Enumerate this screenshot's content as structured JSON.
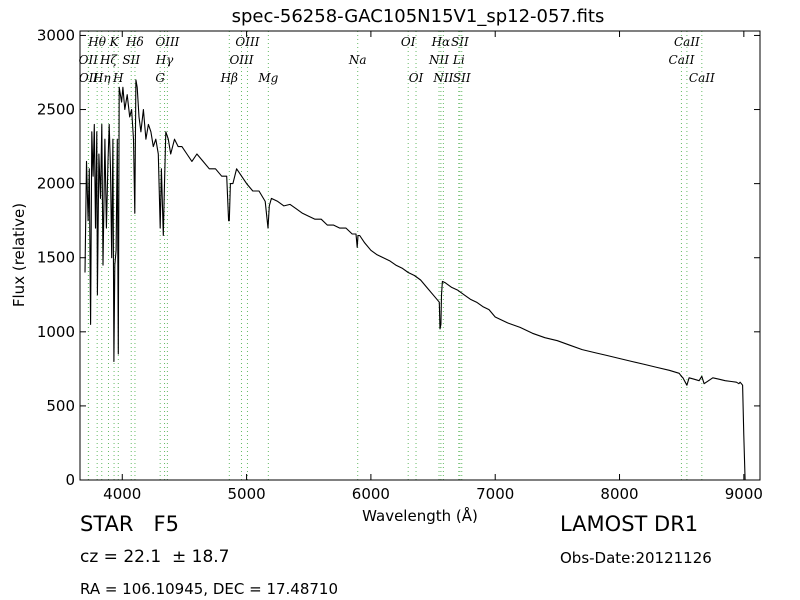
{
  "chart_data": {
    "type": "line",
    "title": "spec-56258-GAC105N15V1_sp12-057.fits",
    "xlabel": "Wavelength (Å)",
    "ylabel": "Flux (relative)",
    "xlim": [
      3660,
      9130
    ],
    "ylim": [
      0,
      3030
    ],
    "x_ticks": [
      4000,
      5000,
      6000,
      7000,
      8000,
      9000
    ],
    "x_tick_labels": [
      "4000",
      "5000",
      "6000",
      "7000",
      "8000",
      "9000"
    ],
    "y_ticks": [
      0,
      500,
      1000,
      1500,
      2000,
      2500,
      3000
    ],
    "y_tick_labels": [
      "0",
      "500",
      "1000",
      "1500",
      "2000",
      "2500",
      "3000"
    ],
    "grid": false,
    "line_color": "#000000",
    "spectral_line_color": "#66bb66",
    "series": [
      {
        "values_x": [
          3700,
          3712,
          3725,
          3735,
          3745,
          3755,
          3765,
          3775,
          3785,
          3795,
          3800,
          3812,
          3825,
          3835,
          3845,
          3860,
          3872,
          3885,
          3895,
          3905,
          3915,
          3925,
          3933,
          3940,
          3950,
          3960,
          3968,
          3975,
          3985,
          3995,
          4005,
          4020,
          4040,
          4060,
          4075,
          4090,
          4101,
          4110,
          4120,
          4135,
          4150,
          4170,
          4190,
          4210,
          4230,
          4250,
          4270,
          4290,
          4305,
          4315,
          4330,
          4340,
          4350,
          4370,
          4390,
          4420,
          4450,
          4480,
          4520,
          4560,
          4600,
          4650,
          4700,
          4750,
          4800,
          4840,
          4855,
          4861,
          4870,
          4890,
          4920,
          4960,
          5000,
          5050,
          5100,
          5150,
          5172,
          5183,
          5200,
          5250,
          5300,
          5350,
          5400,
          5450,
          5500,
          5550,
          5600,
          5650,
          5700,
          5750,
          5800,
          5850,
          5880,
          5890,
          5896,
          5910,
          5950,
          6000,
          6050,
          6100,
          6150,
          6200,
          6250,
          6300,
          6350,
          6400,
          6450,
          6500,
          6530,
          6550,
          6556,
          6563,
          6568,
          6575,
          6600,
          6650,
          6700,
          6750,
          6800,
          6850,
          6900,
          6950,
          7000,
          7100,
          7200,
          7300,
          7400,
          7500,
          7600,
          7700,
          7800,
          7900,
          8000,
          8100,
          8200,
          8300,
          8400,
          8480,
          8498,
          8510,
          8542,
          8560,
          8600,
          8640,
          8662,
          8680,
          8750,
          8800,
          8850,
          8900,
          8940,
          8960,
          8970,
          8980,
          8990,
          9000,
          9010
        ],
        "values_y": [
          1400,
          2150,
          1750,
          2100,
          1050,
          2350,
          2050,
          2400,
          1700,
          2350,
          1250,
          2200,
          1900,
          2400,
          1450,
          2300,
          1700,
          2150,
          2400,
          2100,
          1500,
          2300,
          800,
          1450,
          1550,
          2300,
          850,
          2650,
          2600,
          2550,
          2650,
          2500,
          2600,
          2450,
          2500,
          2300,
          1800,
          2700,
          2650,
          2450,
          2350,
          2500,
          2300,
          2400,
          2350,
          2250,
          2300,
          2200,
          1700,
          2100,
          1650,
          2000,
          2350,
          2300,
          2200,
          2300,
          2250,
          2250,
          2200,
          2150,
          2200,
          2150,
          2100,
          2100,
          2050,
          2050,
          1750,
          1750,
          2000,
          2000,
          2100,
          2050,
          2000,
          1950,
          1950,
          1880,
          1700,
          1850,
          1900,
          1880,
          1850,
          1860,
          1830,
          1800,
          1780,
          1760,
          1760,
          1720,
          1720,
          1700,
          1700,
          1660,
          1660,
          1570,
          1650,
          1650,
          1600,
          1550,
          1520,
          1500,
          1480,
          1450,
          1430,
          1400,
          1380,
          1350,
          1300,
          1250,
          1220,
          1200,
          1020,
          1050,
          1250,
          1340,
          1330,
          1300,
          1280,
          1250,
          1220,
          1200,
          1170,
          1150,
          1100,
          1060,
          1030,
          990,
          960,
          940,
          910,
          880,
          860,
          840,
          820,
          800,
          780,
          760,
          740,
          720,
          700,
          690,
          640,
          690,
          680,
          670,
          700,
          650,
          690,
          680,
          670,
          665,
          660,
          650,
          660,
          650,
          640,
          300,
          0
        ]
      }
    ],
    "spectral_lines": [
      {
        "name": "OII",
        "wavelength": 3727,
        "row": 2
      },
      {
        "name": "OII",
        "wavelength": 3729,
        "row": 3
      },
      {
        "name": "Hθ",
        "wavelength": 3798,
        "row": 1
      },
      {
        "name": "Hη",
        "wavelength": 3835,
        "row": 3
      },
      {
        "name": "Hζ",
        "wavelength": 3889,
        "row": 2
      },
      {
        "name": "K",
        "wavelength": 3934,
        "row": 1
      },
      {
        "name": "H",
        "wavelength": 3968,
        "row": 3
      },
      {
        "name": "SII",
        "wavelength": 4072,
        "row": 2
      },
      {
        "name": "Hδ",
        "wavelength": 4102,
        "row": 1
      },
      {
        "name": "Hγ",
        "wavelength": 4340,
        "row": 2
      },
      {
        "name": "G",
        "wavelength": 4305,
        "row": 3
      },
      {
        "name": "OIII",
        "wavelength": 4363,
        "row": 1
      },
      {
        "name": "Hβ",
        "wavelength": 4861,
        "row": 3
      },
      {
        "name": "OIII",
        "wavelength": 4959,
        "row": 2
      },
      {
        "name": "OIII",
        "wavelength": 5007,
        "row": 1
      },
      {
        "name": "Mg",
        "wavelength": 5175,
        "row": 3
      },
      {
        "name": "Na",
        "wavelength": 5894,
        "row": 2
      },
      {
        "name": "OI",
        "wavelength": 6300,
        "row": 1
      },
      {
        "name": "OI",
        "wavelength": 6363,
        "row": 3
      },
      {
        "name": "NII",
        "wavelength": 6548,
        "row": 2
      },
      {
        "name": "Hα",
        "wavelength": 6563,
        "row": 1
      },
      {
        "name": "NII",
        "wavelength": 6583,
        "row": 3
      },
      {
        "name": "Li",
        "wavelength": 6707,
        "row": 2
      },
      {
        "name": "SII",
        "wavelength": 6716,
        "row": 1
      },
      {
        "name": "SII",
        "wavelength": 6731,
        "row": 3
      },
      {
        "name": "CaII",
        "wavelength": 8498,
        "row": 2
      },
      {
        "name": "CaII",
        "wavelength": 8542,
        "row": 1
      },
      {
        "name": "CaII",
        "wavelength": 8662,
        "row": 3
      }
    ]
  },
  "info": {
    "star_class": "STAR   F5",
    "survey": "LAMOST DR1",
    "cz": "cz = 22.1  ± 18.7",
    "obs_date": "Obs-Date:20121126",
    "ra_dec": "RA = 106.10945, DEC = 17.48710"
  }
}
